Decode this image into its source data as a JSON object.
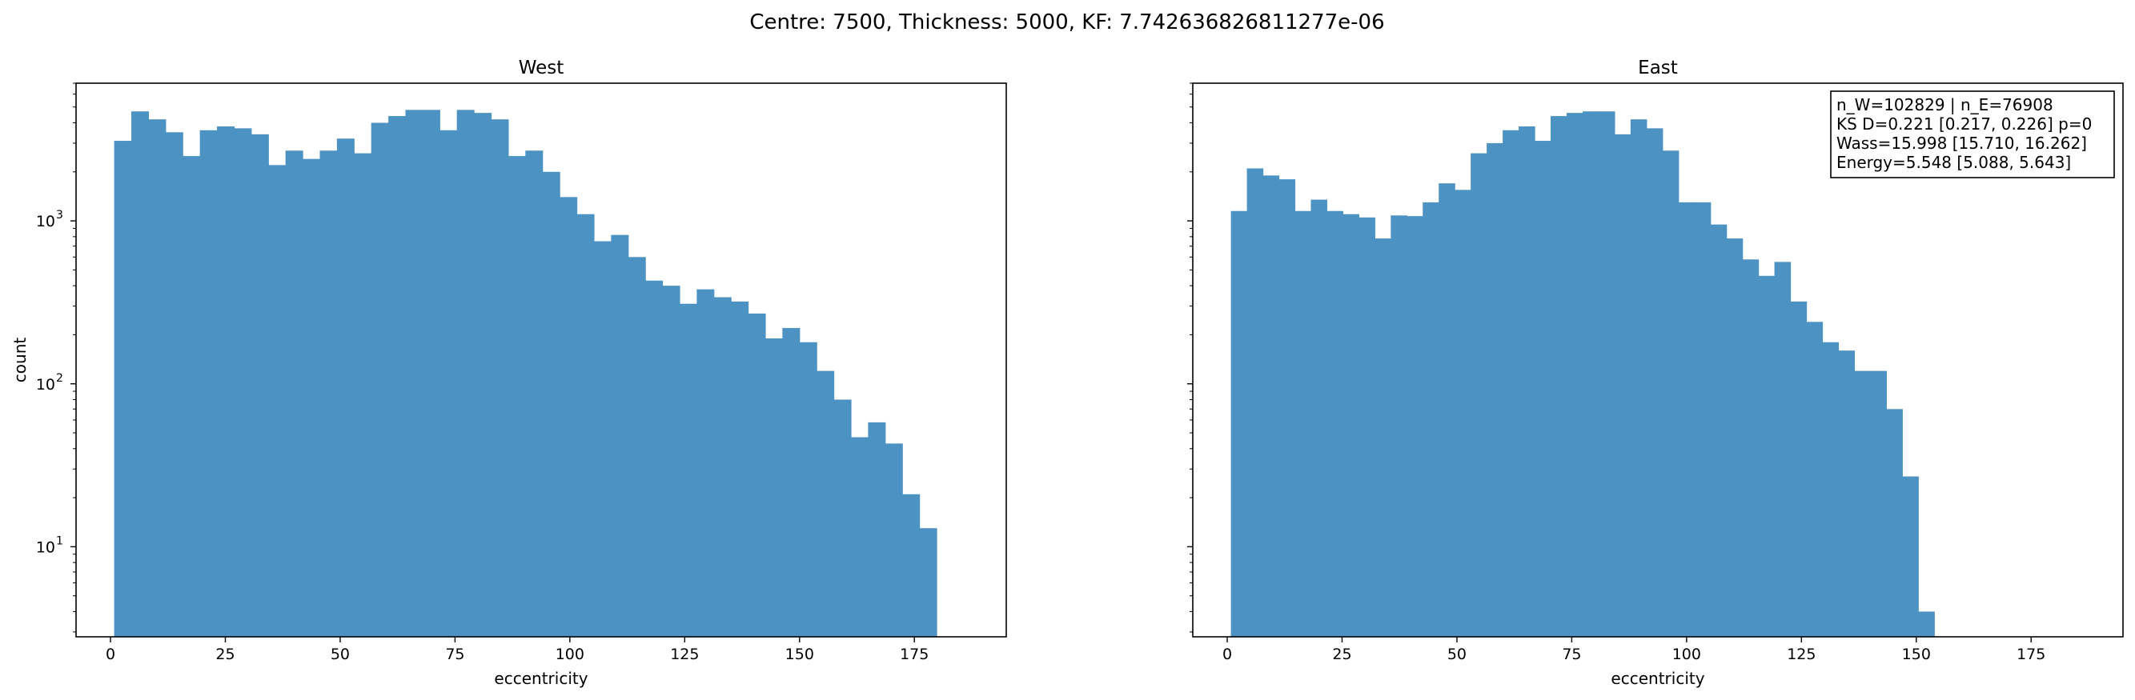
{
  "figure_title": "Centre: 7500, Thickness: 5000, KF: 7.742636826811277e-06",
  "colors": {
    "bar": "#4c92c3",
    "axis": "#000000",
    "background": "#ffffff"
  },
  "chart_data": [
    {
      "type": "bar",
      "title": "West",
      "xlabel": "eccentricity",
      "ylabel": "count",
      "yscale": "log",
      "ylim": [
        2.8,
        7000
      ],
      "xlim": [
        -7.5,
        195
      ],
      "xticks": [
        0,
        25,
        50,
        75,
        100,
        125,
        150,
        175
      ],
      "yticks": [
        {
          "value": 10,
          "label": "10",
          "exp": "1"
        },
        {
          "value": 100,
          "label": "10",
          "exp": "2"
        },
        {
          "value": 1000,
          "label": "10",
          "exp": "3"
        }
      ],
      "bin_start": 0.8,
      "bin_width": 3.73,
      "values": [
        3100,
        4700,
        4200,
        3500,
        2500,
        3600,
        3800,
        3700,
        3400,
        2200,
        2700,
        2400,
        2700,
        3200,
        2600,
        4000,
        4400,
        4800,
        4800,
        3600,
        4800,
        4600,
        4200,
        2500,
        2700,
        2000,
        1400,
        1100,
        750,
        820,
        600,
        430,
        400,
        310,
        380,
        340,
        320,
        270,
        190,
        220,
        180,
        120,
        80,
        47,
        58,
        43,
        21,
        13
      ]
    },
    {
      "type": "bar",
      "title": "East",
      "xlabel": "eccentricity",
      "ylabel": "",
      "yscale": "log",
      "ylim": [
        2.8,
        7000
      ],
      "xlim": [
        -7.5,
        195
      ],
      "xticks": [
        0,
        25,
        50,
        75,
        100,
        125,
        150,
        175
      ],
      "yticks": [
        {
          "value": 10,
          "label": "",
          "exp": ""
        },
        {
          "value": 100,
          "label": "",
          "exp": ""
        },
        {
          "value": 1000,
          "label": "",
          "exp": ""
        }
      ],
      "bin_start": 0.8,
      "bin_width": 3.48,
      "values": [
        1150,
        2100,
        1900,
        1800,
        1150,
        1350,
        1150,
        1100,
        1050,
        780,
        1080,
        1070,
        1300,
        1700,
        1550,
        2600,
        3000,
        3600,
        3800,
        3100,
        4400,
        4600,
        4700,
        4700,
        3400,
        4200,
        3700,
        2700,
        1300,
        1300,
        950,
        780,
        580,
        460,
        560,
        320,
        240,
        180,
        160,
        120,
        120,
        70,
        27,
        4
      ]
    }
  ],
  "stats_box": {
    "lines": [
      "n_W=102829 | n_E=76908",
      "KS D=0.221 [0.217, 0.226]  p=0",
      "Wass=15.998 [15.710, 16.262]",
      "Energy=5.548 [5.088, 5.643]"
    ]
  }
}
